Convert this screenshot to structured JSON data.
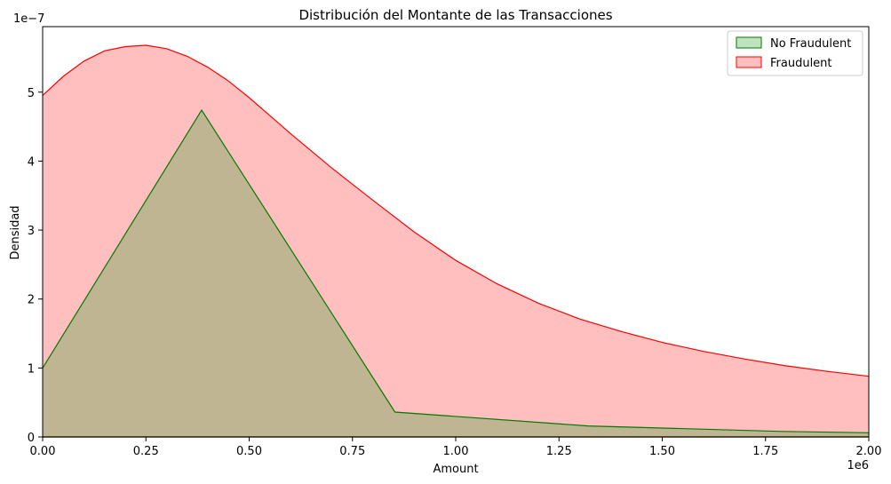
{
  "chart_data": {
    "type": "area",
    "title": "Distribución del Montante de las Transacciones",
    "xlabel": "Amount",
    "ylabel": "Densidad",
    "x_offset_text": "1e6",
    "y_offset_text": "1e−7",
    "xlim": [
      0,
      2.0
    ],
    "ylim": [
      0,
      5.95
    ],
    "x_ticks": [
      0,
      0.25,
      0.5,
      0.75,
      1.0,
      1.25,
      1.5,
      1.75,
      2.0
    ],
    "x_tick_labels": [
      "0.00",
      "0.25",
      "0.50",
      "0.75",
      "1.00",
      "1.25",
      "1.50",
      "1.75",
      "2.00"
    ],
    "y_ticks": [
      0,
      1,
      2,
      3,
      4,
      5
    ],
    "y_tick_labels": [
      "0",
      "1",
      "2",
      "3",
      "4",
      "5"
    ],
    "grid": false,
    "legend_position": "top-right",
    "series": [
      {
        "name": "No Fraudulent",
        "fill": "#2ca02c",
        "fill_opacity": 0.3,
        "stroke": "#007a00",
        "x": [
          0,
          0.385,
          0.853,
          1.32,
          1.79,
          2.0
        ],
        "y": [
          1.0,
          4.74,
          0.36,
          0.16,
          0.08,
          0.06
        ]
      },
      {
        "name": "Fraudulent",
        "fill": "#ff0000",
        "fill_opacity": 0.25,
        "stroke": "#ff0000",
        "x": [
          0,
          0.05,
          0.1,
          0.15,
          0.2,
          0.25,
          0.3,
          0.35,
          0.4,
          0.45,
          0.5,
          0.55,
          0.6,
          0.7,
          0.8,
          0.9,
          1.0,
          1.1,
          1.2,
          1.3,
          1.4,
          1.5,
          1.6,
          1.7,
          1.8,
          1.9,
          2.0
        ],
        "y": [
          4.95,
          5.23,
          5.45,
          5.6,
          5.66,
          5.68,
          5.63,
          5.52,
          5.36,
          5.16,
          4.92,
          4.66,
          4.4,
          3.9,
          3.43,
          2.97,
          2.56,
          2.22,
          1.94,
          1.71,
          1.53,
          1.37,
          1.24,
          1.13,
          1.03,
          0.95,
          0.88
        ]
      }
    ]
  }
}
